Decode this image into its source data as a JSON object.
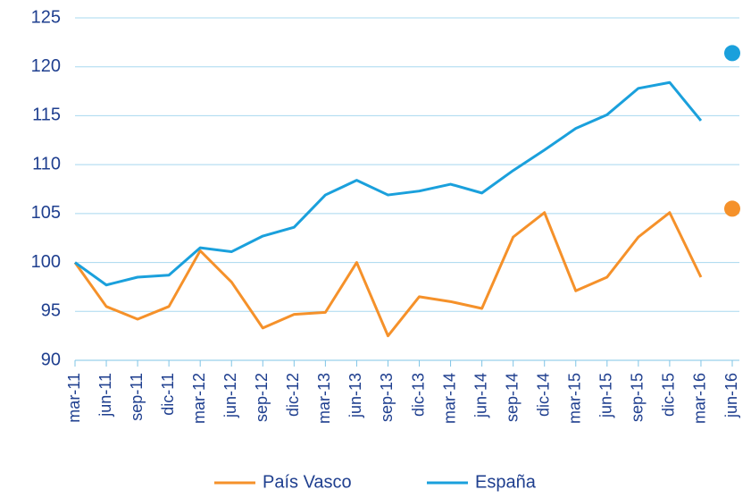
{
  "chart_data": {
    "type": "line",
    "categories": [
      "mar-11",
      "jun-11",
      "sep-11",
      "dic-11",
      "mar-12",
      "jun-12",
      "sep-12",
      "dic-12",
      "mar-13",
      "jun-13",
      "sep-13",
      "dic-13",
      "mar-14",
      "jun-14",
      "sep-14",
      "dic-14",
      "mar-15",
      "jun-15",
      "sep-15",
      "dic-15",
      "mar-16",
      "jun-16"
    ],
    "series": [
      {
        "name": "País Vasco",
        "color": "#f5912a",
        "values": [
          100,
          95.5,
          94.2,
          95.5,
          101.2,
          98.0,
          93.3,
          94.7,
          94.9,
          100.0,
          92.5,
          96.5,
          96.0,
          95.3,
          102.6,
          105.1,
          97.1,
          98.5,
          102.6,
          105.1,
          98.5,
          105.5
        ]
      },
      {
        "name": "España",
        "color": "#1aa0dc",
        "values": [
          100,
          97.7,
          98.5,
          98.7,
          101.5,
          101.1,
          102.7,
          103.6,
          106.9,
          108.4,
          106.9,
          107.3,
          108.0,
          107.1,
          109.4,
          111.5,
          113.7,
          115.1,
          117.8,
          118.4,
          114.5,
          121.4
        ]
      }
    ],
    "last_point_marker_only": true,
    "ylim": [
      90,
      125
    ],
    "yticks": [
      90,
      95,
      100,
      105,
      110,
      115,
      120,
      125
    ],
    "grid": true,
    "legend": "bottom"
  }
}
